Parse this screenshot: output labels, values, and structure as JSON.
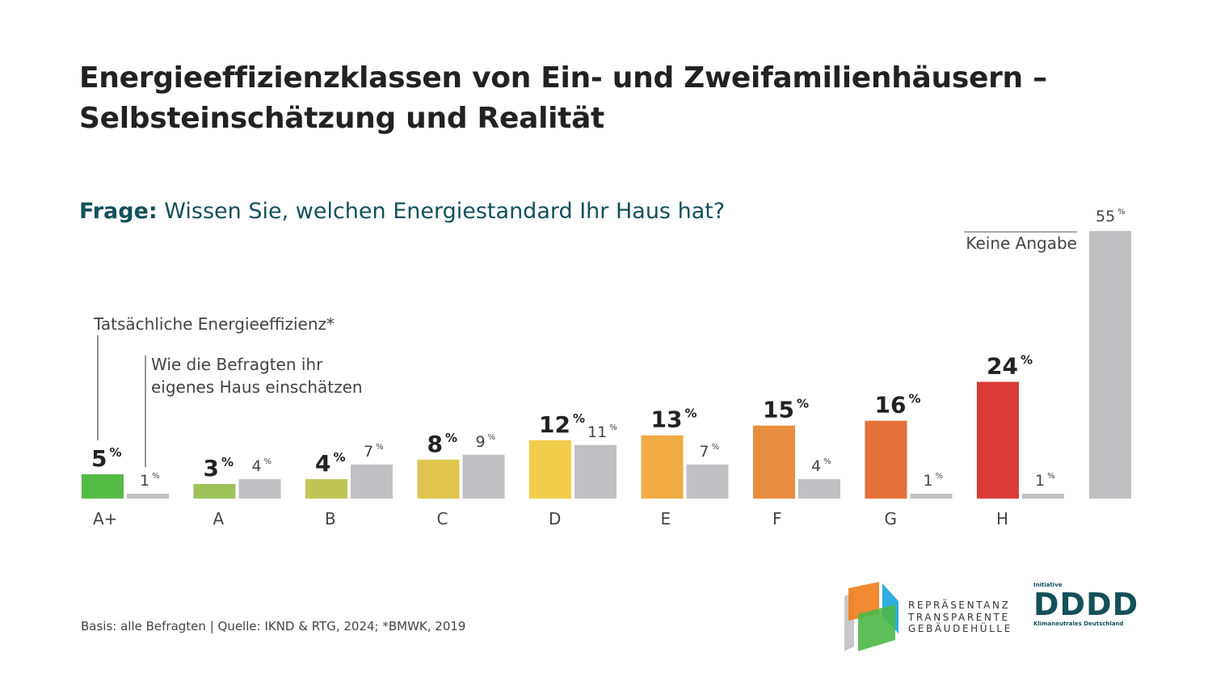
{
  "title_line1": "Energieeffizienzklassen von Ein- und Zweifamilienhäusern –",
  "title_line2": "Selbsteinschätzung und Realität",
  "question_label": "Frage:",
  "question_text": " Wissen Sie, welchen Energiestandard Ihr Haus hat?",
  "footer": "Basis: alle Befragten | Quelle: IKND & RTG, 2024; *BMWK, 2019",
  "logos": {
    "rtg": [
      "REPRÄSENTANZ",
      "TRANSPARENTE",
      "GEBÄUDEHÜLLE"
    ],
    "iknd_small": "Initiative",
    "iknd_mark": "DDDD",
    "iknd_sub": "Klimaneutrales Deutschland"
  },
  "chart_data": {
    "type": "bar",
    "unit": "%",
    "categories": [
      "A+",
      "A",
      "B",
      "C",
      "D",
      "E",
      "F",
      "G",
      "H"
    ],
    "series": [
      {
        "name": "Tatsächliche Energieeffizienz*",
        "values": [
          5,
          3,
          4,
          8,
          12,
          13,
          15,
          16,
          24
        ],
        "colors": [
          "#55bb47",
          "#9dc25a",
          "#bfc655",
          "#dfc54d",
          "#f4cd4c",
          "#f0ab45",
          "#e88d3f",
          "#e4703a",
          "#d93b35"
        ]
      },
      {
        "name": "Wie die Befragten ihr eigenes Haus einschätzen",
        "values": [
          1,
          4,
          7,
          9,
          11,
          7,
          4,
          1,
          1
        ],
        "color": "#c0c0c2"
      }
    ],
    "extra": {
      "label": "Keine Angabe",
      "value": 55,
      "color": "#c0c0c2"
    },
    "legend_lines": {
      "actual": "Tatsächliche Energieeffizienz*",
      "self": [
        "Wie die Befragten ihr",
        "eigenes Haus einschätzen"
      ]
    },
    "ylim": [
      0,
      55
    ]
  }
}
